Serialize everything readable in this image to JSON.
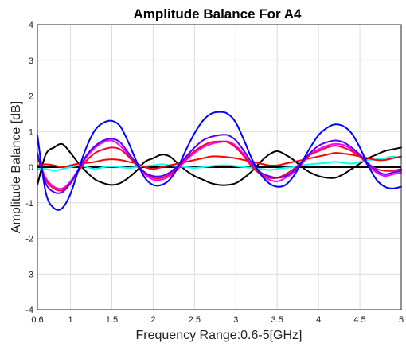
{
  "chart_data": {
    "type": "line",
    "title": "Amplitude Balance For A4",
    "xlabel": "Frequency Range:0.6-5[GHz]",
    "ylabel": "Amplitude Balance [dB]",
    "xlim": [
      0.6,
      5
    ],
    "ylim": [
      -4,
      4
    ],
    "xticks": [
      0.6,
      1,
      1.5,
      2,
      2.5,
      3,
      3.5,
      4,
      4.5,
      5
    ],
    "xtick_labels": [
      "0.6",
      "1",
      "1.5",
      "2",
      "2.5",
      "3",
      "3.5",
      "4",
      "4.5",
      "5"
    ],
    "yticks": [
      -4,
      -3,
      -2,
      -1,
      0,
      1,
      2,
      3,
      4
    ],
    "ytick_labels": [
      "-4",
      "-3",
      "-2",
      "-1",
      "0",
      "1",
      "2",
      "3",
      "4"
    ],
    "grid": true,
    "series": [
      {
        "color": "#000000",
        "x": [
          0.6,
          0.7,
          0.8,
          0.9,
          1.0,
          1.1,
          1.2,
          1.3,
          1.4,
          1.5,
          1.6,
          1.7,
          1.8,
          1.9,
          2.0,
          2.1,
          2.2,
          2.3,
          2.4,
          2.5,
          2.6,
          2.7,
          2.8,
          2.9,
          3.0,
          3.1,
          3.2,
          3.3,
          3.4,
          3.5,
          3.6,
          3.7,
          3.8,
          3.9,
          4.0,
          4.1,
          4.2,
          4.3,
          4.4,
          4.5,
          4.6,
          4.7,
          4.8,
          4.9,
          5.0
        ],
        "y": [
          -0.5,
          0.35,
          0.55,
          0.65,
          0.4,
          0.1,
          -0.15,
          -0.35,
          -0.45,
          -0.5,
          -0.45,
          -0.3,
          -0.1,
          0.15,
          0.25,
          0.35,
          0.3,
          0.1,
          -0.1,
          -0.25,
          -0.35,
          -0.45,
          -0.5,
          -0.5,
          -0.45,
          -0.3,
          -0.1,
          0.15,
          0.35,
          0.45,
          0.35,
          0.2,
          0.0,
          -0.15,
          -0.25,
          -0.3,
          -0.3,
          -0.2,
          -0.05,
          0.1,
          0.25,
          0.35,
          0.45,
          0.5,
          0.55
        ]
      },
      {
        "color": "#00ffff",
        "x": [
          0.6,
          0.7,
          0.8,
          0.9,
          1.0,
          1.1,
          1.2,
          1.3,
          1.4,
          1.5,
          1.6,
          1.7,
          1.8,
          1.9,
          2.0,
          2.1,
          2.2,
          2.3,
          2.4,
          2.5,
          2.6,
          2.7,
          2.8,
          2.9,
          3.0,
          3.1,
          3.2,
          3.3,
          3.4,
          3.5,
          3.6,
          3.7,
          3.8,
          3.9,
          4.0,
          4.1,
          4.2,
          4.3,
          4.4,
          4.5,
          4.6,
          4.7,
          4.8,
          4.9,
          5.0
        ],
        "y": [
          -0.05,
          -0.05,
          -0.1,
          -0.05,
          0.0,
          0.05,
          0.0,
          -0.05,
          0.0,
          0.02,
          0.0,
          -0.02,
          0.0,
          0.03,
          0.05,
          0.08,
          0.05,
          0.02,
          0.0,
          -0.02,
          0.0,
          0.03,
          0.05,
          0.05,
          0.03,
          0.0,
          -0.02,
          -0.05,
          -0.08,
          -0.05,
          -0.02,
          0.0,
          0.05,
          0.08,
          0.1,
          0.12,
          0.15,
          0.12,
          0.1,
          0.15,
          0.2,
          0.22,
          0.25,
          0.3,
          0.25
        ]
      },
      {
        "color": "#ff0000",
        "x": [
          0.6,
          0.7,
          0.8,
          0.9,
          1.0,
          1.1,
          1.2,
          1.3,
          1.4,
          1.5,
          1.6,
          1.7,
          1.8,
          1.9,
          2.0,
          2.1,
          2.2,
          2.3,
          2.4,
          2.5,
          2.6,
          2.7,
          2.8,
          2.9,
          3.0,
          3.1,
          3.2,
          3.3,
          3.4,
          3.5,
          3.6,
          3.7,
          3.8,
          3.9,
          4.0,
          4.1,
          4.2,
          4.3,
          4.4,
          4.5,
          4.6,
          4.7,
          4.8,
          4.9,
          5.0
        ],
        "y": [
          0.05,
          0.08,
          0.05,
          0.0,
          0.05,
          0.1,
          0.12,
          0.15,
          0.2,
          0.22,
          0.2,
          0.15,
          0.1,
          0.0,
          -0.05,
          0.0,
          0.05,
          0.1,
          0.15,
          0.2,
          0.25,
          0.3,
          0.3,
          0.28,
          0.25,
          0.2,
          0.15,
          0.1,
          0.05,
          0.05,
          0.1,
          0.15,
          0.2,
          0.25,
          0.3,
          0.35,
          0.4,
          0.38,
          0.35,
          0.3,
          0.25,
          0.2,
          0.2,
          0.25,
          0.3
        ]
      },
      {
        "color": "#ff00ff",
        "x": [
          0.6,
          0.7,
          0.8,
          0.9,
          1.0,
          1.1,
          1.2,
          1.3,
          1.4,
          1.5,
          1.6,
          1.7,
          1.8,
          1.9,
          2.0,
          2.1,
          2.2,
          2.3,
          2.4,
          2.5,
          2.6,
          2.7,
          2.8,
          2.9,
          3.0,
          3.1,
          3.2,
          3.3,
          3.4,
          3.5,
          3.6,
          3.7,
          3.8,
          3.9,
          4.0,
          4.1,
          4.2,
          4.3,
          4.4,
          4.5,
          4.6,
          4.7,
          4.8,
          4.9,
          5.0
        ],
        "y": [
          0.3,
          -0.3,
          -0.55,
          -0.6,
          -0.4,
          -0.05,
          0.3,
          0.55,
          0.7,
          0.75,
          0.6,
          0.35,
          0.05,
          -0.2,
          -0.35,
          -0.35,
          -0.25,
          -0.05,
          0.2,
          0.4,
          0.55,
          0.65,
          0.7,
          0.72,
          0.6,
          0.35,
          0.05,
          -0.2,
          -0.35,
          -0.4,
          -0.3,
          -0.15,
          0.1,
          0.35,
          0.5,
          0.6,
          0.65,
          0.62,
          0.5,
          0.3,
          0.05,
          -0.15,
          -0.25,
          -0.2,
          -0.15
        ]
      },
      {
        "color": "#ff0033",
        "x": [
          0.6,
          0.7,
          0.8,
          0.9,
          1.0,
          1.1,
          1.2,
          1.3,
          1.4,
          1.5,
          1.6,
          1.7,
          1.8,
          1.9,
          2.0,
          2.1,
          2.2,
          2.3,
          2.4,
          2.5,
          2.6,
          2.7,
          2.8,
          2.9,
          3.0,
          3.1,
          3.2,
          3.3,
          3.4,
          3.5,
          3.6,
          3.7,
          3.8,
          3.9,
          4.0,
          4.1,
          4.2,
          4.3,
          4.4,
          4.5,
          4.6,
          4.7,
          4.8,
          4.9,
          5.0
        ],
        "y": [
          0.3,
          -0.35,
          -0.6,
          -0.65,
          -0.45,
          -0.1,
          0.2,
          0.4,
          0.5,
          0.55,
          0.5,
          0.3,
          0.05,
          -0.15,
          -0.3,
          -0.3,
          -0.2,
          0.0,
          0.25,
          0.45,
          0.6,
          0.7,
          0.72,
          0.7,
          0.55,
          0.3,
          0.0,
          -0.2,
          -0.3,
          -0.3,
          -0.2,
          -0.05,
          0.15,
          0.35,
          0.45,
          0.55,
          0.6,
          0.55,
          0.45,
          0.3,
          0.1,
          -0.05,
          -0.1,
          -0.1,
          -0.05
        ]
      },
      {
        "color": "#5500ff",
        "x": [
          0.6,
          0.7,
          0.8,
          0.9,
          1.0,
          1.1,
          1.2,
          1.3,
          1.4,
          1.5,
          1.6,
          1.7,
          1.8,
          1.9,
          2.0,
          2.1,
          2.2,
          2.3,
          2.4,
          2.5,
          2.6,
          2.7,
          2.8,
          2.9,
          3.0,
          3.1,
          3.2,
          3.3,
          3.4,
          3.5,
          3.6,
          3.7,
          3.8,
          3.9,
          4.0,
          4.1,
          4.2,
          4.3,
          4.4,
          4.5,
          4.6,
          4.7,
          4.8,
          4.9,
          5.0
        ],
        "y": [
          0.4,
          -0.45,
          -0.7,
          -0.7,
          -0.45,
          -0.05,
          0.35,
          0.6,
          0.75,
          0.8,
          0.7,
          0.4,
          0.1,
          -0.15,
          -0.25,
          -0.25,
          -0.15,
          0.05,
          0.3,
          0.55,
          0.75,
          0.85,
          0.9,
          0.9,
          0.75,
          0.45,
          0.1,
          -0.15,
          -0.25,
          -0.3,
          -0.25,
          -0.1,
          0.15,
          0.4,
          0.6,
          0.7,
          0.75,
          0.7,
          0.55,
          0.35,
          0.1,
          -0.1,
          -0.2,
          -0.15,
          -0.1
        ]
      },
      {
        "color": "#0000ff",
        "x": [
          0.6,
          0.7,
          0.8,
          0.9,
          1.0,
          1.1,
          1.2,
          1.3,
          1.4,
          1.5,
          1.6,
          1.7,
          1.8,
          1.9,
          2.0,
          2.1,
          2.2,
          2.3,
          2.4,
          2.5,
          2.6,
          2.7,
          2.8,
          2.9,
          3.0,
          3.1,
          3.2,
          3.3,
          3.4,
          3.5,
          3.6,
          3.7,
          3.8,
          3.9,
          4.0,
          4.1,
          4.2,
          4.3,
          4.4,
          4.5,
          4.6,
          4.7,
          4.8,
          4.9,
          5.0
        ],
        "y": [
          0.9,
          -0.7,
          -1.15,
          -1.15,
          -0.75,
          -0.05,
          0.6,
          1.05,
          1.25,
          1.3,
          1.15,
          0.7,
          0.15,
          -0.3,
          -0.5,
          -0.5,
          -0.35,
          0.0,
          0.5,
          0.95,
          1.3,
          1.5,
          1.55,
          1.5,
          1.25,
          0.75,
          0.2,
          -0.2,
          -0.45,
          -0.55,
          -0.5,
          -0.25,
          0.15,
          0.55,
          0.9,
          1.1,
          1.2,
          1.15,
          0.95,
          0.55,
          0.05,
          -0.35,
          -0.55,
          -0.6,
          -0.55
        ]
      }
    ]
  }
}
